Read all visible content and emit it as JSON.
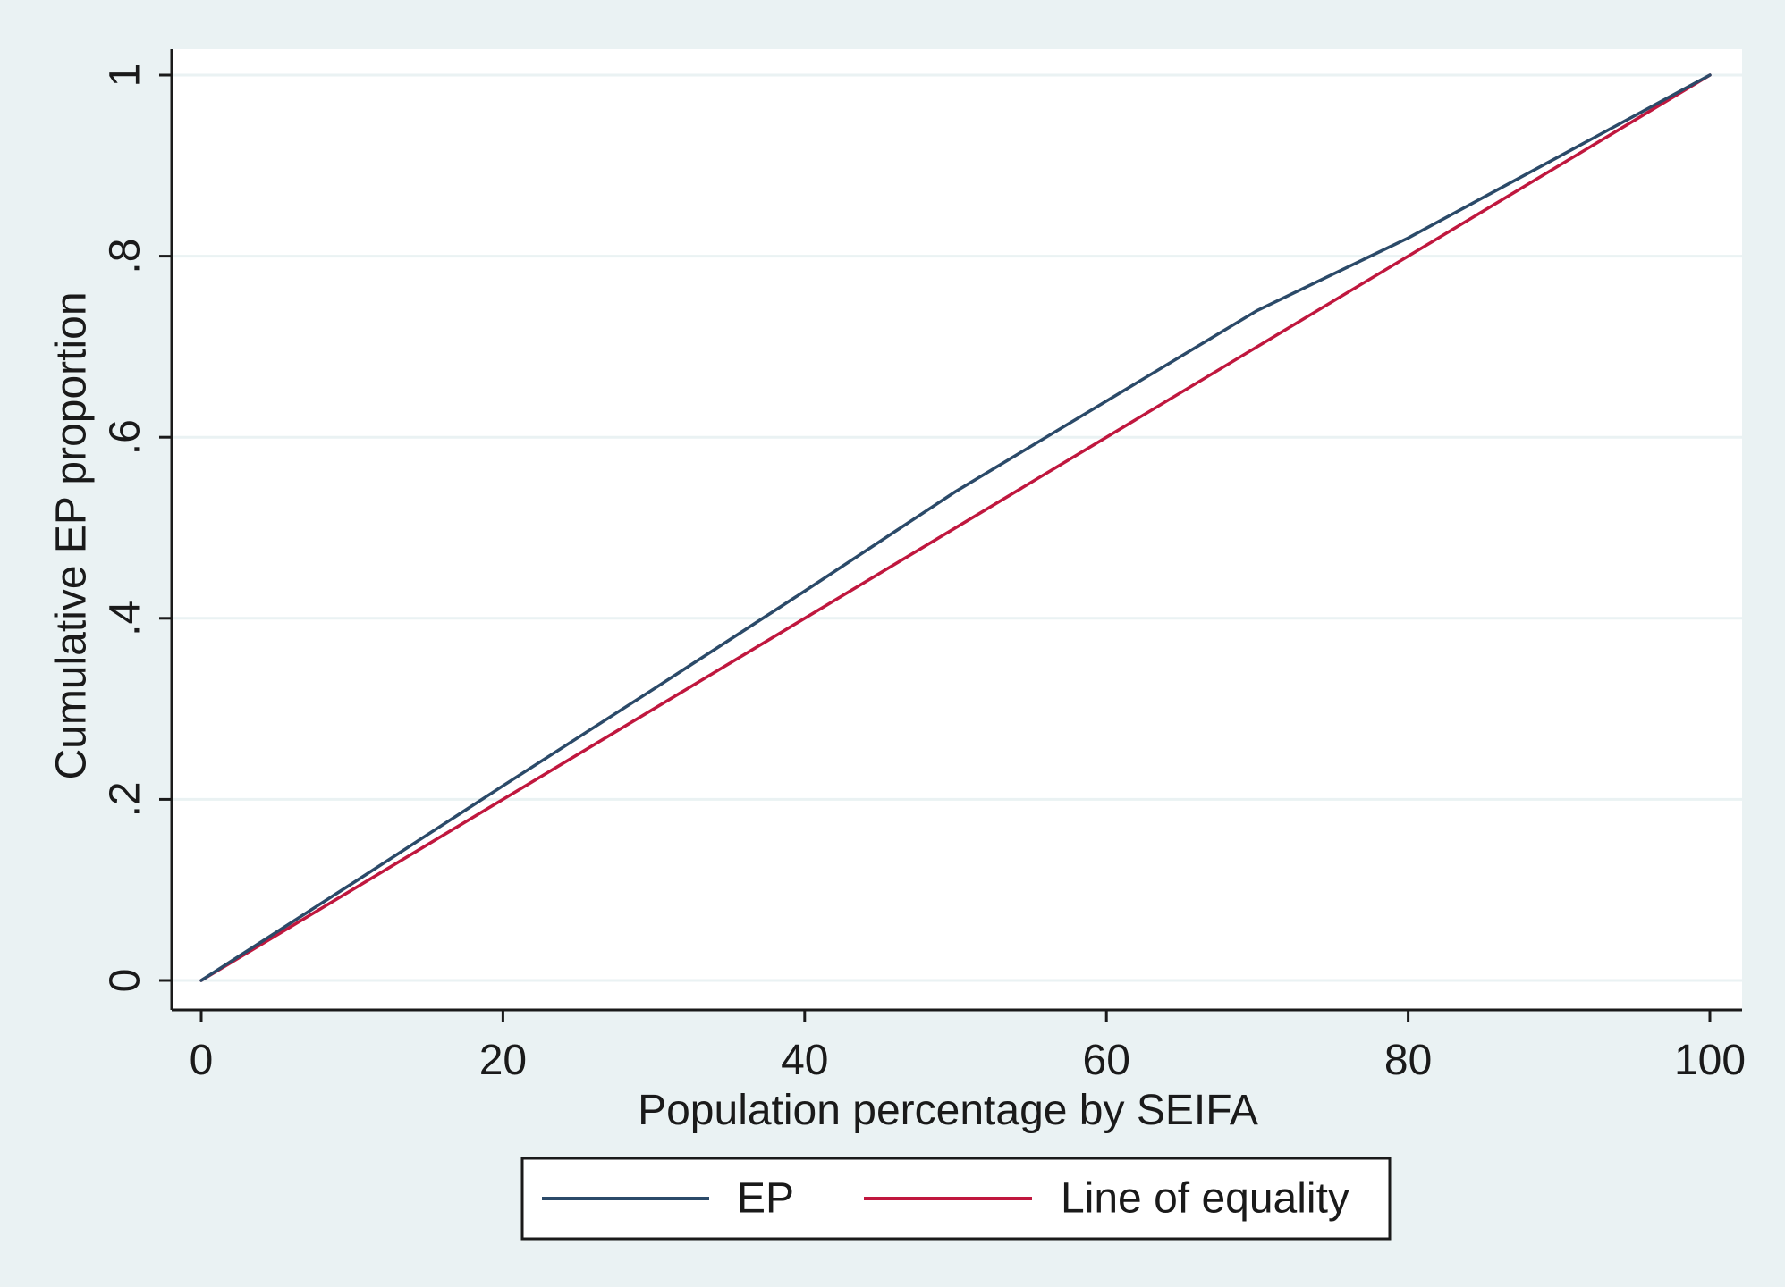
{
  "chart_data": {
    "type": "line",
    "title": "",
    "xlabel": "Population percentage by SEIFA",
    "ylabel": "Cumulative EP proportion",
    "xlim": [
      0,
      100
    ],
    "ylim": [
      0,
      1
    ],
    "x_ticks": [
      0,
      20,
      40,
      60,
      80,
      100
    ],
    "x_tick_labels": [
      "0",
      "20",
      "40",
      "60",
      "80",
      "100"
    ],
    "y_ticks": [
      0,
      0.2,
      0.4,
      0.6,
      0.8,
      1
    ],
    "y_tick_labels": [
      "0",
      ".2",
      ".4",
      ".6",
      ".8",
      "1"
    ],
    "grid": true,
    "legend_placement": "bottom",
    "colors": {
      "outer_background": "#eaf2f3",
      "plot_background": "#ffffff",
      "grid": "#eaf2f3",
      "axis": "#1a1a1a"
    },
    "series": [
      {
        "name": "EP",
        "color": "#2b4a69",
        "x": [
          0,
          10,
          20,
          30,
          40,
          50,
          60,
          70,
          80,
          90,
          100
        ],
        "y": [
          0,
          0.107,
          0.215,
          0.322,
          0.43,
          0.54,
          0.64,
          0.74,
          0.82,
          0.91,
          1.0
        ]
      },
      {
        "name": "Line of equality",
        "color": "#c0173e",
        "x": [
          0,
          100
        ],
        "y": [
          0,
          1
        ]
      }
    ]
  }
}
